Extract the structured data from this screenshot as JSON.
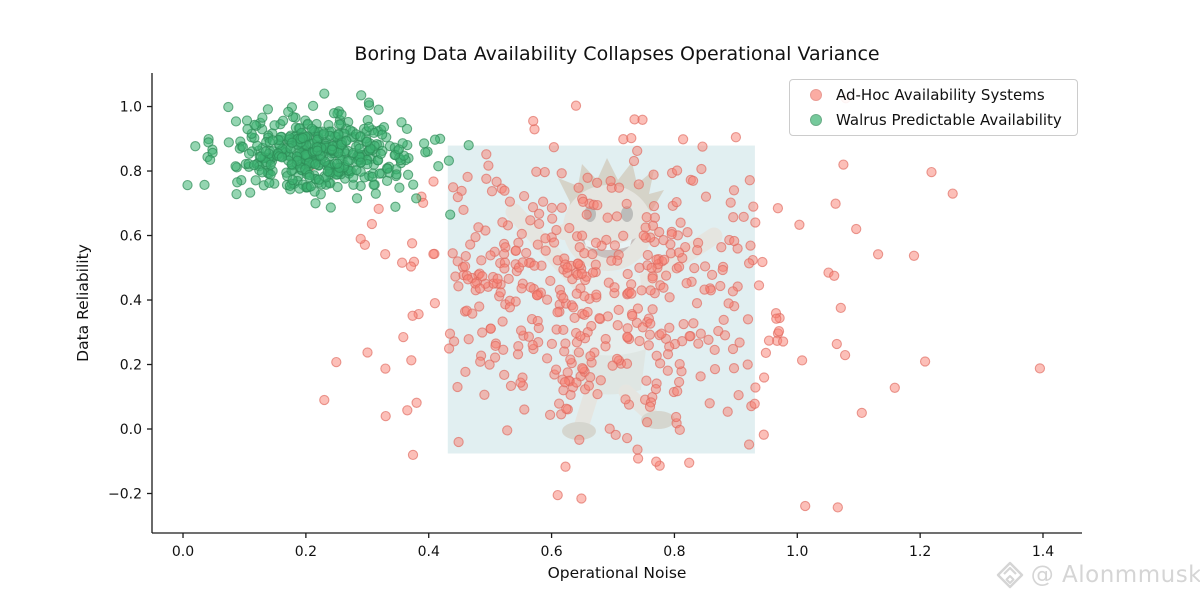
{
  "title": "Boring Data Availability Collapses Operational Variance",
  "watermark": {
    "icon": "diamond-logo-icon",
    "text": "@ Alonmmusk",
    "color": "#d5d5d5"
  },
  "chart_data": {
    "type": "scatter",
    "title": "Boring Data Availability Collapses Operational Variance",
    "xlabel": "Operational Noise",
    "ylabel": "Data Reliability",
    "xlim": [
      -0.0505,
      1.4635
    ],
    "ylim": [
      -0.3225,
      1.104
    ],
    "grid": false,
    "spines": [
      "left",
      "bottom"
    ],
    "x_ticks": [
      {
        "v": 0.0,
        "label": "0.0"
      },
      {
        "v": 0.2,
        "label": "0.2"
      },
      {
        "v": 0.4,
        "label": "0.4"
      },
      {
        "v": 0.6,
        "label": "0.6"
      },
      {
        "v": 0.8,
        "label": "0.8"
      },
      {
        "v": 1.0,
        "label": "1.0"
      },
      {
        "v": 1.2,
        "label": "1.2"
      },
      {
        "v": 1.4,
        "label": "1.4"
      }
    ],
    "y_ticks": [
      {
        "v": 1.0,
        "label": "1.0"
      },
      {
        "v": 0.8,
        "label": "0.8"
      },
      {
        "v": 0.6,
        "label": "0.6"
      },
      {
        "v": 0.4,
        "label": "0.4"
      },
      {
        "v": 0.2,
        "label": "0.2"
      },
      {
        "v": 0.0,
        "label": "0.0"
      },
      {
        "v": -0.2,
        "label": "−0.2"
      }
    ],
    "legend": {
      "position": "upper right"
    },
    "highlight_region": {
      "x0": 0.431,
      "x1": 0.931,
      "y0": -0.076,
      "y1": 0.879,
      "fill": "#e1eff1",
      "opacity": 1
    },
    "center_watermark": "jumping-child-mascot",
    "marker_radius": 4.6,
    "series": [
      {
        "name": "Ad-Hoc Availability Systems",
        "color": "#FA8072",
        "edge": "#de685d",
        "alpha": 0.5,
        "n": 505,
        "mean": [
          0.68,
          0.4
        ],
        "std": [
          0.165,
          0.215
        ],
        "seed": 1337,
        "outliers": [
          [
            1.395,
            0.188
          ],
          [
            1.253,
            0.73
          ],
          [
            1.19,
            0.537
          ],
          [
            1.066,
            -0.243
          ],
          [
            0.23,
            0.09
          ],
          [
            0.33,
            0.04
          ],
          [
            0.57,
            0.955
          ],
          [
            0.735,
            0.96
          ],
          [
            0.9,
            0.905
          ],
          [
            0.61,
            -0.205
          ],
          [
            1.105,
            0.05
          ],
          [
            1.075,
            0.82
          ]
        ]
      },
      {
        "name": "Walrus Predictable Availability",
        "color": "#3CB371",
        "edge": "#2e8b57",
        "alpha": 0.55,
        "n": 460,
        "mean": [
          0.225,
          0.85
        ],
        "std": [
          0.075,
          0.057
        ],
        "seed": 2024,
        "outliers": [
          [
            0.02,
            0.877
          ],
          [
            0.035,
            0.757
          ],
          [
            0.23,
            1.04
          ],
          [
            0.29,
            1.035
          ],
          [
            0.465,
            0.88
          ],
          [
            0.435,
            0.665
          ],
          [
            0.105,
            0.93
          ]
        ]
      }
    ]
  }
}
